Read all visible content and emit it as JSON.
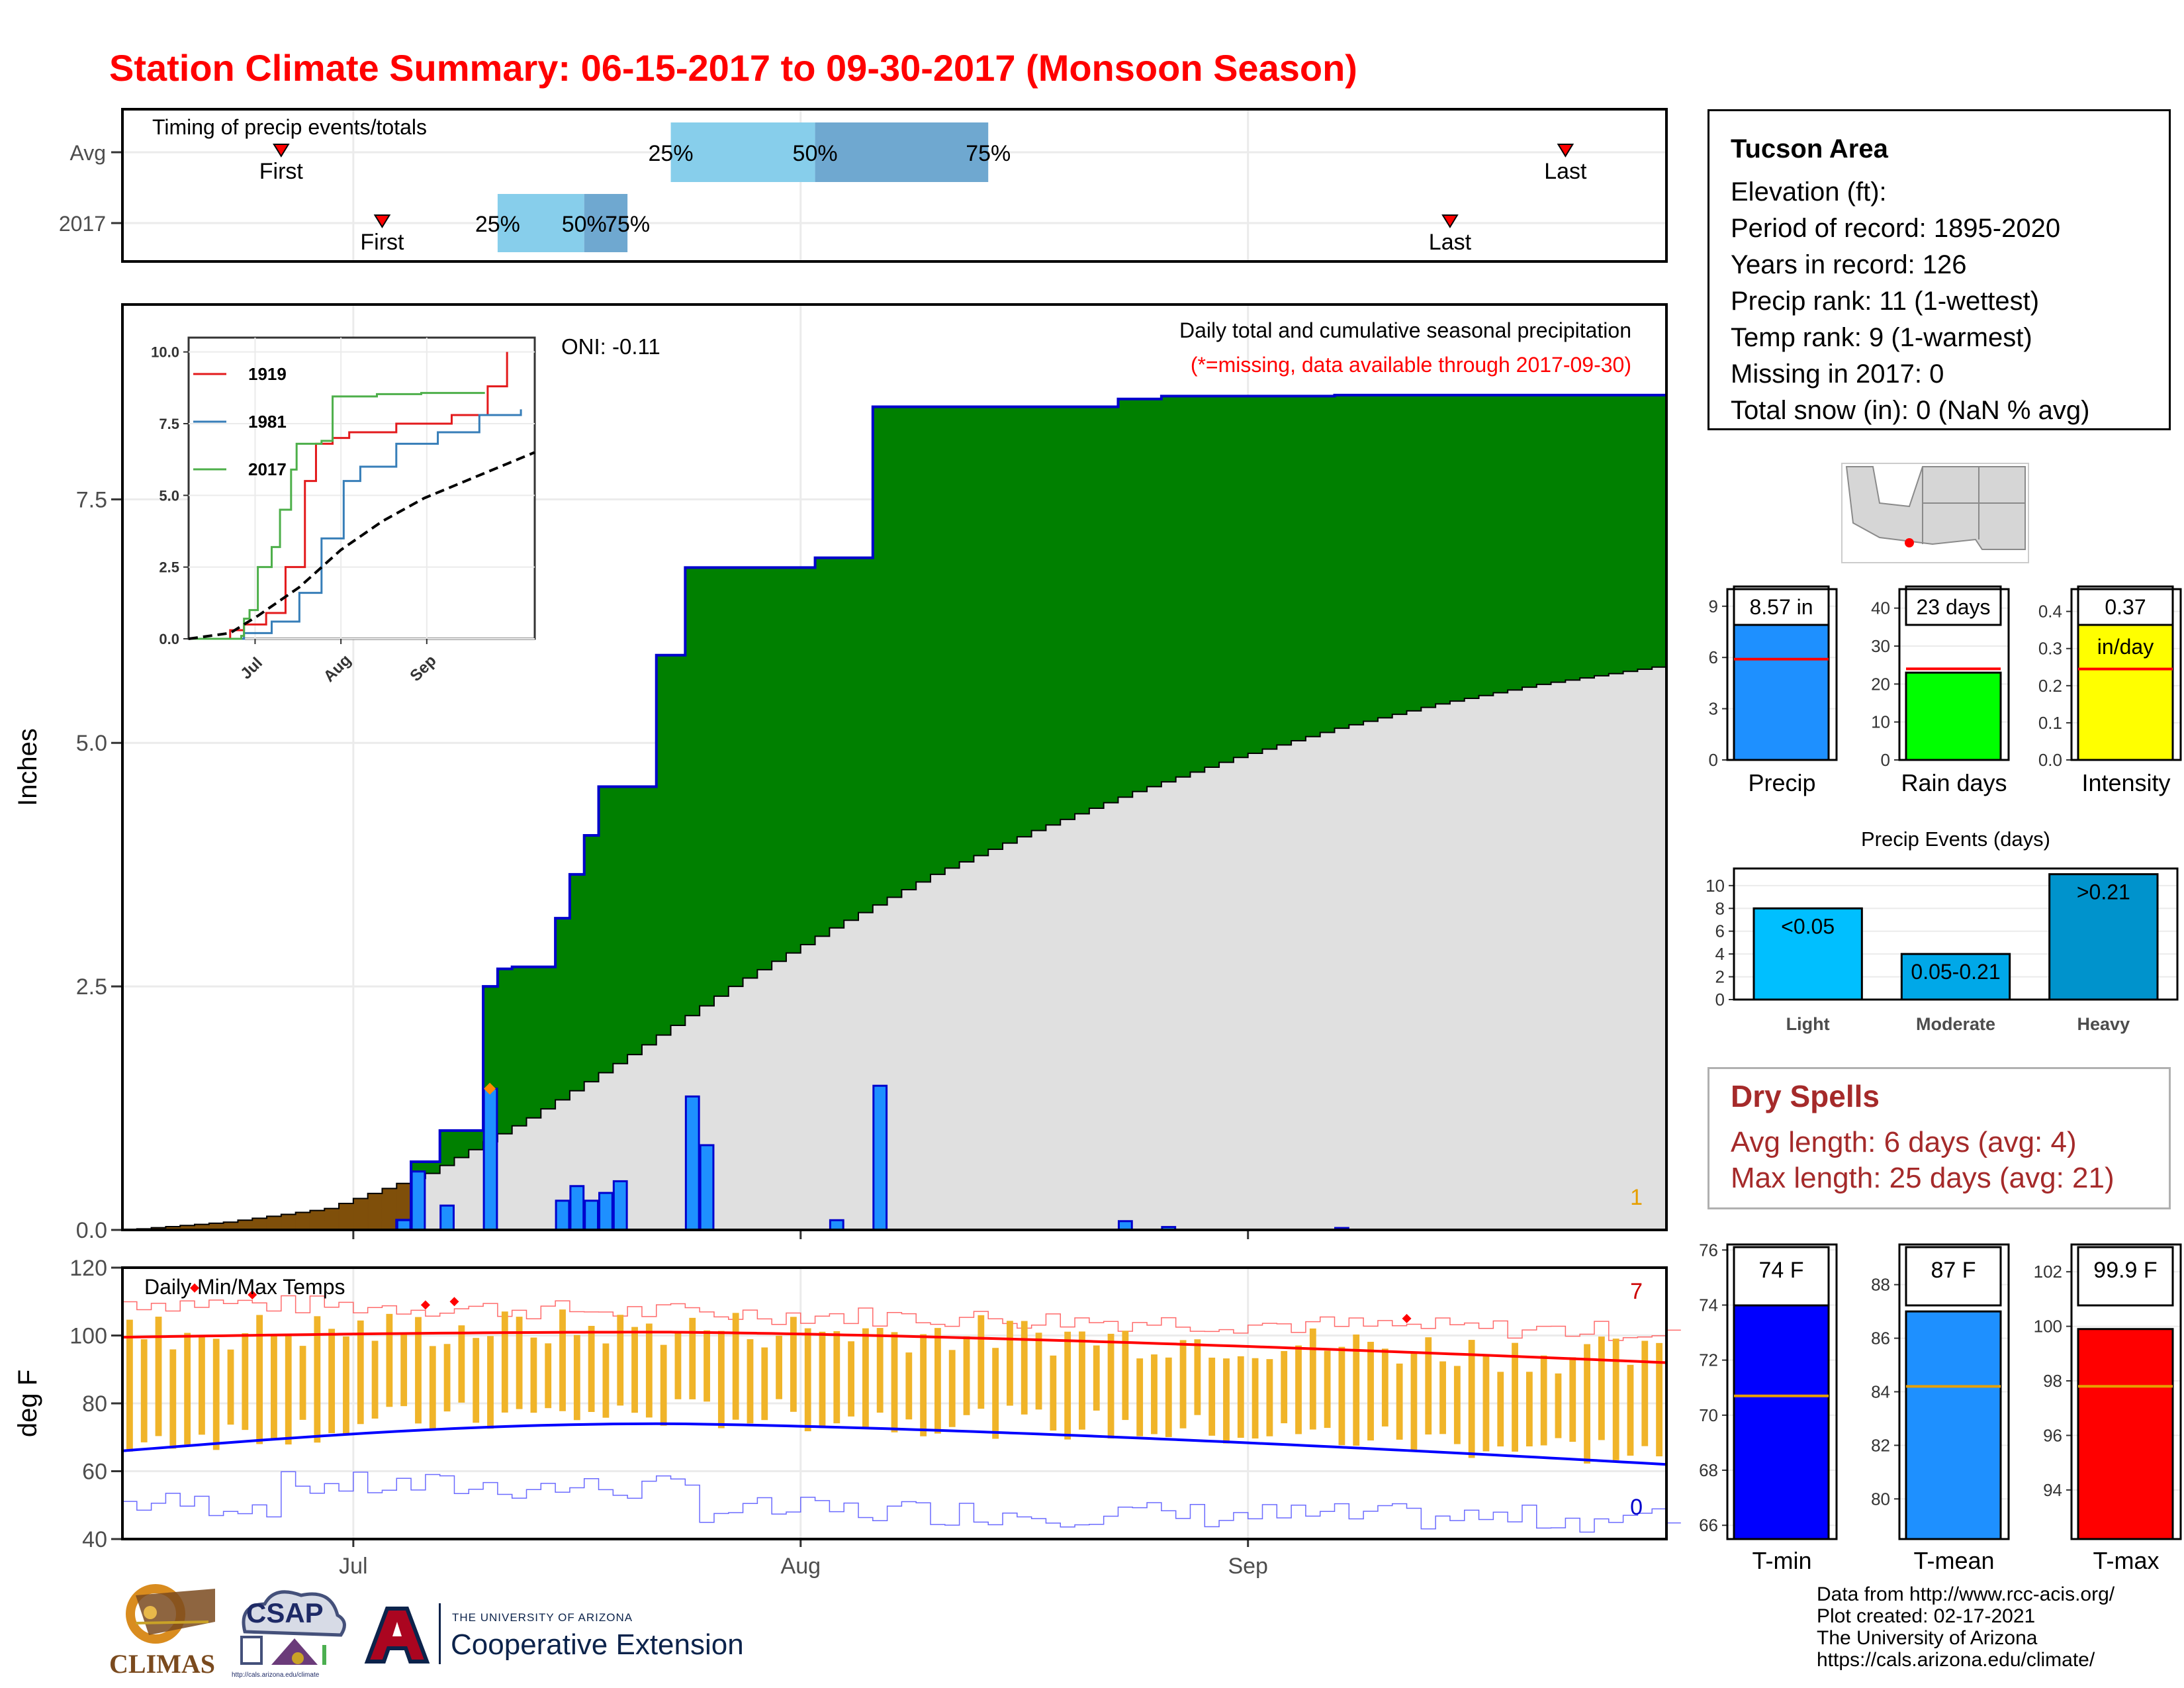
{
  "title": "Station Climate Summary: 06-15-2017 to 09-30-2017 (Monsoon Season)",
  "timing": {
    "title": "Timing of precip events/totals",
    "rows": [
      {
        "label": "Avg",
        "first": "First",
        "last": "Last",
        "first_day": "2017-06-26",
        "last_day": "2017-09-23",
        "p25": "2017-07-23",
        "p50": "2017-08-02",
        "p75": "2017-08-14"
      },
      {
        "label": "2017",
        "first": "First",
        "last": "Last",
        "first_day": "2017-07-03",
        "last_day": "2017-09-15",
        "p25": "2017-07-11",
        "p50": "2017-07-17",
        "p75": "2017-07-20"
      }
    ],
    "pct_labels": [
      "25%",
      "50%",
      "75%"
    ]
  },
  "precip": {
    "subtitle": "Daily total and cumulative seasonal precipitation",
    "missing_note": "(*=missing, data available through 2017-09-30)",
    "oni": "ONI: -0.11",
    "ylabel": "Inches",
    "corner_count": "1"
  },
  "inset": {
    "legend": [
      "1919",
      "1981",
      "2017"
    ],
    "legend_colors": [
      "#e31a1c",
      "#377eb8",
      "#4daf4a"
    ],
    "yticks": [
      "0.0",
      "2.5",
      "5.0",
      "7.5",
      "10.0"
    ],
    "xticks": [
      "Jul",
      "Aug",
      "Sep"
    ]
  },
  "temps": {
    "title": "Daily Min/Max Temps",
    "ylabel": "deg F",
    "count_hi": "7",
    "count_lo": "0",
    "yticks": [
      "40",
      "60",
      "80",
      "100",
      "120"
    ]
  },
  "xticks": [
    "Jul",
    "Aug",
    "Sep"
  ],
  "info": {
    "station": "Tucson Area",
    "lines": [
      "Elevation (ft):",
      "Period of record: 1895-2020",
      "Years in record: 126",
      "Precip rank: 11 (1-wettest)",
      "Temp rank: 9 (1-warmest)",
      "Missing in 2017: 0",
      "Total snow (in): 0 (NaN % avg)"
    ]
  },
  "mini_bars": [
    {
      "name": "Precip",
      "value_label": "8.57 in",
      "value": 8.57,
      "avg": 5.9,
      "ymax": 10,
      "yticks": [
        "0",
        "3",
        "6",
        "9"
      ],
      "tickvals": [
        0,
        3,
        6,
        9
      ],
      "color": "#1e90ff"
    },
    {
      "name": "Rain days",
      "value_label": "23 days",
      "value": 23,
      "avg": 24,
      "ymax": 45,
      "yticks": [
        "0",
        "10",
        "20",
        "30",
        "40"
      ],
      "tickvals": [
        0,
        10,
        20,
        30,
        40
      ],
      "color": "#00ff00"
    },
    {
      "name": "Intensity",
      "value_label": "0.37",
      "value_label2": "in/day",
      "value": 0.37,
      "avg": 0.245,
      "ymax": 0.46,
      "yticks": [
        "0.0",
        "0.1",
        "0.2",
        "0.3",
        "0.4"
      ],
      "tickvals": [
        0,
        0.1,
        0.2,
        0.3,
        0.4
      ],
      "color": "#ffff00"
    }
  ],
  "events": {
    "title": "Precip Events (days)",
    "categories": [
      "Light",
      "Moderate",
      "Heavy"
    ],
    "labels": [
      "<0.05",
      "0.05-0.21",
      ">0.21"
    ],
    "values": [
      8,
      4,
      11
    ],
    "colors": [
      "#00bfff",
      "#00a8e8",
      "#0093cc"
    ],
    "yticks": [
      "0",
      "2",
      "4",
      "6",
      "8",
      "10"
    ]
  },
  "dry_spells": {
    "title": "Dry Spells",
    "lines": [
      "Avg length: 6 days (avg: 4)",
      "Max length: 25 days (avg: 21)"
    ]
  },
  "temp_bars": [
    {
      "name": "T-min",
      "value_label": "74 F",
      "value": 74.1,
      "avg": 70.7,
      "ymin": 65.5,
      "ymax": 76.2,
      "yticks": [
        "66",
        "68",
        "70",
        "72",
        "74",
        "76"
      ],
      "tickvals": [
        66,
        68,
        70,
        72,
        74,
        76
      ],
      "color": "#0000ff"
    },
    {
      "name": "T-mean",
      "value_label": "87 F",
      "value": 87.0,
      "avg": 84.2,
      "ymin": 78.5,
      "ymax": 89.5,
      "yticks": [
        "80",
        "82",
        "84",
        "86",
        "88"
      ],
      "tickvals": [
        80,
        82,
        84,
        86,
        88
      ],
      "color": "#1e90ff"
    },
    {
      "name": "T-max",
      "value_label": "99.9 F",
      "value": 99.9,
      "avg": 97.8,
      "ymin": 92.2,
      "ymax": 103.0,
      "yticks": [
        "94",
        "96",
        "98",
        "100",
        "102"
      ],
      "tickvals": [
        94,
        96,
        98,
        100,
        102
      ],
      "color": "#ff0000"
    }
  ],
  "credits": [
    "Data from http://www.rcc-acis.org/",
    "Plot created: 02-17-2021",
    "The University of Arizona",
    "https://cals.arizona.edu/climate/"
  ],
  "logos": {
    "climas": "CLIMAS",
    "csap": "CSAP",
    "csap_url": "http://cals.arizona.edu/climate",
    "ua_small": "THE UNIVERSITY OF ARIZONA",
    "ua_big": "Cooperative Extension"
  },
  "chart_data": {
    "type": "area",
    "title": "Daily total and cumulative seasonal precipitation",
    "xlabel": "",
    "ylabel": "Inches",
    "x_range": [
      "2017-06-15",
      "2017-09-30"
    ],
    "ylim": [
      0,
      9.5
    ],
    "grid": true,
    "daily_precip_2017": [
      {
        "date": "2017-07-04",
        "value": 0.1
      },
      {
        "date": "2017-07-05",
        "value": 0.6
      },
      {
        "date": "2017-07-07",
        "value": 0.25
      },
      {
        "date": "2017-07-10",
        "value": 1.45
      },
      {
        "date": "2017-07-15",
        "value": 0.3
      },
      {
        "date": "2017-07-16",
        "value": 0.45
      },
      {
        "date": "2017-07-17",
        "value": 0.3
      },
      {
        "date": "2017-07-18",
        "value": 0.38
      },
      {
        "date": "2017-07-19",
        "value": 0.5
      },
      {
        "date": "2017-07-24",
        "value": 1.37
      },
      {
        "date": "2017-07-25",
        "value": 0.87
      },
      {
        "date": "2017-08-03",
        "value": 0.1
      },
      {
        "date": "2017-08-06",
        "value": 1.48
      },
      {
        "date": "2017-08-23",
        "value": 0.09
      },
      {
        "date": "2017-08-26",
        "value": 0.03
      },
      {
        "date": "2017-09-07",
        "value": 0.02
      }
    ],
    "cumulative_2017": [
      {
        "date": "2017-06-15",
        "value": 0
      },
      {
        "date": "2017-07-04",
        "value": 0.1
      },
      {
        "date": "2017-07-05",
        "value": 0.7
      },
      {
        "date": "2017-07-07",
        "value": 1.02
      },
      {
        "date": "2017-07-10",
        "value": 2.5
      },
      {
        "date": "2017-07-11",
        "value": 2.68
      },
      {
        "date": "2017-07-12",
        "value": 2.7
      },
      {
        "date": "2017-07-15",
        "value": 3.2
      },
      {
        "date": "2017-07-16",
        "value": 3.65
      },
      {
        "date": "2017-07-17",
        "value": 4.05
      },
      {
        "date": "2017-07-18",
        "value": 4.55
      },
      {
        "date": "2017-07-22",
        "value": 5.9
      },
      {
        "date": "2017-07-24",
        "value": 6.8
      },
      {
        "date": "2017-08-02",
        "value": 6.9
      },
      {
        "date": "2017-08-06",
        "value": 8.45
      },
      {
        "date": "2017-08-12",
        "value": 8.45
      },
      {
        "date": "2017-08-23",
        "value": 8.53
      },
      {
        "date": "2017-08-26",
        "value": 8.56
      },
      {
        "date": "2017-09-07",
        "value": 8.57
      },
      {
        "date": "2017-09-30",
        "value": 8.57
      }
    ],
    "cumulative_avg": [
      {
        "date": "2017-06-15",
        "value": 0
      },
      {
        "date": "2017-06-22",
        "value": 0.08
      },
      {
        "date": "2017-06-29",
        "value": 0.22
      },
      {
        "date": "2017-07-06",
        "value": 0.58
      },
      {
        "date": "2017-07-13",
        "value": 1.15
      },
      {
        "date": "2017-07-20",
        "value": 1.8
      },
      {
        "date": "2017-07-27",
        "value": 2.5
      },
      {
        "date": "2017-08-03",
        "value": 3.1
      },
      {
        "date": "2017-08-10",
        "value": 3.65
      },
      {
        "date": "2017-08-17",
        "value": 4.1
      },
      {
        "date": "2017-08-24",
        "value": 4.5
      },
      {
        "date": "2017-08-31",
        "value": 4.85
      },
      {
        "date": "2017-09-07",
        "value": 5.15
      },
      {
        "date": "2017-09-14",
        "value": 5.4
      },
      {
        "date": "2017-09-21",
        "value": 5.6
      },
      {
        "date": "2017-09-30",
        "value": 5.8
      }
    ],
    "inset_series": [
      {
        "name": "1919",
        "points": [
          [
            0,
            0
          ],
          [
            15,
            0.3
          ],
          [
            20,
            0.5
          ],
          [
            28,
            0.9
          ],
          [
            35,
            2.5
          ],
          [
            42,
            5.5
          ],
          [
            46,
            6.8
          ],
          [
            52,
            7.0
          ],
          [
            58,
            7.2
          ],
          [
            75,
            7.5
          ],
          [
            95,
            7.8
          ],
          [
            108,
            8.8
          ],
          [
            115,
            10.0
          ]
        ]
      },
      {
        "name": "1981",
        "points": [
          [
            0,
            0
          ],
          [
            20,
            0.2
          ],
          [
            30,
            0.6
          ],
          [
            40,
            1.6
          ],
          [
            48,
            3.5
          ],
          [
            56,
            5.5
          ],
          [
            62,
            6.0
          ],
          [
            75,
            6.8
          ],
          [
            90,
            7.2
          ],
          [
            105,
            7.8
          ],
          [
            120,
            8.0
          ]
        ]
      },
      {
        "name": "2017",
        "points": [
          [
            0,
            0
          ],
          [
            19,
            0.1
          ],
          [
            20,
            0.7
          ],
          [
            22,
            1.0
          ],
          [
            25,
            2.5
          ],
          [
            30,
            3.2
          ],
          [
            33,
            4.5
          ],
          [
            37,
            5.9
          ],
          [
            39,
            6.8
          ],
          [
            48,
            6.9
          ],
          [
            52,
            8.45
          ],
          [
            68,
            8.53
          ],
          [
            84,
            8.57
          ],
          [
            107,
            8.57
          ]
        ]
      },
      {
        "name": "avg",
        "points": [
          [
            0,
            0
          ],
          [
            15,
            0.2
          ],
          [
            25,
            0.8
          ],
          [
            40,
            1.8
          ],
          [
            55,
            3.1
          ],
          [
            70,
            4.1
          ],
          [
            85,
            4.9
          ],
          [
            100,
            5.5
          ],
          [
            115,
            6.1
          ],
          [
            125,
            6.5
          ]
        ]
      }
    ],
    "temp_series": {
      "ylim": [
        40,
        120
      ],
      "avg_max_start": 99.5,
      "avg_max_peak": 101,
      "avg_max_end": 92,
      "avg_min_start": 66,
      "avg_min_peak": 74,
      "avg_min_end": 62,
      "record_max_start": 110,
      "record_max_end": 101,
      "record_min_start": 49,
      "record_min_end": 44
    }
  }
}
